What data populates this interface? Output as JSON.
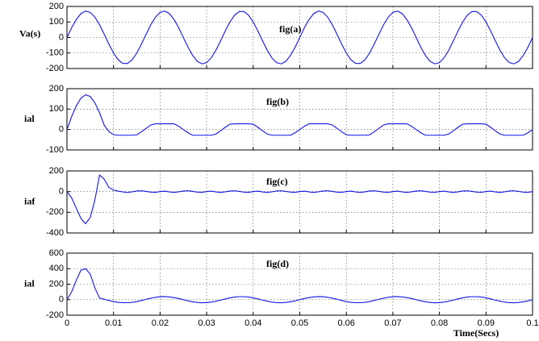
{
  "chart_data": [
    {
      "type": "line",
      "ylabel": "Va(s)",
      "annotation": "fig(a)",
      "color": "#1414e6",
      "x": [
        0,
        0.001,
        0.002,
        0.003,
        0.004,
        0.005,
        0.006,
        0.007,
        0.008,
        0.009,
        0.01,
        0.011,
        0.012,
        0.013,
        0.014,
        0.015,
        0.016,
        0.017,
        0.018,
        0.019,
        0.02,
        0.021,
        0.022,
        0.023,
        0.024,
        0.025,
        0.026,
        0.027,
        0.028,
        0.029,
        0.03,
        0.031,
        0.032,
        0.033,
        0.034,
        0.035,
        0.036,
        0.037,
        0.038,
        0.039,
        0.04,
        0.041,
        0.042,
        0.043,
        0.044,
        0.045,
        0.046,
        0.047,
        0.048,
        0.049,
        0.05,
        0.051,
        0.052,
        0.053,
        0.054,
        0.055,
        0.056,
        0.057,
        0.058,
        0.059,
        0.06,
        0.061,
        0.062,
        0.063,
        0.064,
        0.065,
        0.066,
        0.067,
        0.068,
        0.069,
        0.07,
        0.071,
        0.072,
        0.073,
        0.074,
        0.075,
        0.076,
        0.077,
        0.078,
        0.079,
        0.08,
        0.081,
        0.082,
        0.083,
        0.084,
        0.085,
        0.086,
        0.087,
        0.088,
        0.089,
        0.09,
        0.091,
        0.092,
        0.093,
        0.094,
        0.095,
        0.096,
        0.097,
        0.098,
        0.099,
        0.1
      ],
      "values": [
        0,
        63,
        116,
        154,
        170,
        162,
        131,
        82,
        21,
        -42,
        -100,
        -144,
        -167,
        -167,
        -144,
        -100,
        -42,
        21,
        82,
        131,
        162,
        170,
        154,
        116,
        63,
        0,
        -63,
        -116,
        -154,
        -170,
        -162,
        -131,
        -82,
        -21,
        42,
        100,
        144,
        167,
        167,
        144,
        100,
        42,
        -21,
        -82,
        -131,
        -162,
        -170,
        -154,
        -116,
        -63,
        0,
        63,
        116,
        154,
        170,
        162,
        131,
        82,
        21,
        -42,
        -100,
        -144,
        -167,
        -167,
        -144,
        -100,
        -42,
        21,
        82,
        131,
        162,
        170,
        154,
        116,
        63,
        0,
        -63,
        -116,
        -154,
        -170,
        -162,
        -131,
        -82,
        -21,
        42,
        100,
        144,
        167,
        167,
        144,
        100,
        42,
        -21,
        -82,
        -131,
        -162,
        -170,
        -154,
        -116,
        -63,
        0
      ],
      "xlim": [
        0,
        0.1
      ],
      "xticks": [
        0,
        0.01,
        0.02,
        0.03,
        0.04,
        0.05,
        0.06,
        0.07,
        0.08,
        0.09,
        0.1
      ],
      "ylim": [
        -200,
        200
      ],
      "yticks": [
        -200,
        -100,
        0,
        100,
        200
      ],
      "grid": true
    },
    {
      "type": "line",
      "ylabel": "ial",
      "annotation": "fig(b)",
      "color": "#1414e6",
      "x": [
        0,
        0.001,
        0.002,
        0.003,
        0.004,
        0.005,
        0.006,
        0.007,
        0.008,
        0.009,
        0.01,
        0.011,
        0.012,
        0.013,
        0.014,
        0.015,
        0.016,
        0.017,
        0.018,
        0.019,
        0.02,
        0.021,
        0.022,
        0.023,
        0.024,
        0.025,
        0.026,
        0.027,
        0.028,
        0.029,
        0.03,
        0.031,
        0.032,
        0.033,
        0.034,
        0.035,
        0.036,
        0.037,
        0.038,
        0.039,
        0.04,
        0.041,
        0.042,
        0.043,
        0.044,
        0.045,
        0.046,
        0.047,
        0.048,
        0.049,
        0.05,
        0.051,
        0.052,
        0.053,
        0.054,
        0.055,
        0.056,
        0.057,
        0.058,
        0.059,
        0.06,
        0.061,
        0.062,
        0.063,
        0.064,
        0.065,
        0.066,
        0.067,
        0.068,
        0.069,
        0.07,
        0.071,
        0.072,
        0.073,
        0.074,
        0.075,
        0.076,
        0.077,
        0.078,
        0.079,
        0.08,
        0.081,
        0.082,
        0.083,
        0.084,
        0.085,
        0.086,
        0.087,
        0.088,
        0.089,
        0.09,
        0.091,
        0.092,
        0.093,
        0.094,
        0.095,
        0.096,
        0.097,
        0.098,
        0.099,
        0.1
      ],
      "values": [
        0,
        63,
        116,
        154,
        170,
        162,
        131,
        82,
        21,
        -10,
        -25,
        -28,
        -28,
        -28,
        -28,
        -26,
        -11,
        6,
        22,
        28,
        28,
        28,
        28,
        28,
        16,
        0,
        -16,
        -28,
        -28,
        -28,
        -28,
        -28,
        -22,
        -6,
        11,
        26,
        28,
        28,
        28,
        28,
        26,
        11,
        -6,
        -22,
        -28,
        -28,
        -28,
        -28,
        -28,
        -16,
        0,
        16,
        28,
        28,
        28,
        28,
        28,
        22,
        6,
        -11,
        -26,
        -28,
        -28,
        -28,
        -28,
        -26,
        -11,
        6,
        22,
        28,
        28,
        28,
        28,
        28,
        16,
        0,
        -16,
        -28,
        -28,
        -28,
        -28,
        -28,
        -22,
        -6,
        11,
        26,
        28,
        28,
        28,
        28,
        26,
        11,
        -6,
        -22,
        -28,
        -28,
        -28,
        -28,
        -28,
        -16,
        0
      ],
      "xlim": [
        0,
        0.1
      ],
      "xticks": [
        0,
        0.01,
        0.02,
        0.03,
        0.04,
        0.05,
        0.06,
        0.07,
        0.08,
        0.09,
        0.1
      ],
      "ylim": [
        -100,
        200
      ],
      "yticks": [
        -100,
        0,
        100,
        200
      ],
      "grid": true
    },
    {
      "type": "line",
      "ylabel": "iaf",
      "annotation": "fig(c)",
      "color": "#1414e6",
      "x": [
        0,
        0.001,
        0.002,
        0.003,
        0.004,
        0.005,
        0.006,
        0.007,
        0.008,
        0.009,
        0.01,
        0.011,
        0.012,
        0.013,
        0.014,
        0.015,
        0.016,
        0.017,
        0.018,
        0.019,
        0.02,
        0.021,
        0.022,
        0.023,
        0.024,
        0.025,
        0.026,
        0.027,
        0.028,
        0.029,
        0.03,
        0.031,
        0.032,
        0.033,
        0.034,
        0.035,
        0.036,
        0.037,
        0.038,
        0.039,
        0.04,
        0.041,
        0.042,
        0.043,
        0.044,
        0.045,
        0.046,
        0.047,
        0.048,
        0.049,
        0.05,
        0.051,
        0.052,
        0.053,
        0.054,
        0.055,
        0.056,
        0.057,
        0.058,
        0.059,
        0.06,
        0.061,
        0.062,
        0.063,
        0.064,
        0.065,
        0.066,
        0.067,
        0.068,
        0.069,
        0.07,
        0.071,
        0.072,
        0.073,
        0.074,
        0.075,
        0.076,
        0.077,
        0.078,
        0.079,
        0.08,
        0.081,
        0.082,
        0.083,
        0.084,
        0.085,
        0.086,
        0.087,
        0.088,
        0.089,
        0.09,
        0.091,
        0.092,
        0.093,
        0.094,
        0.095,
        0.096,
        0.097,
        0.098,
        0.099,
        0.1
      ],
      "values": [
        0,
        -60,
        -160,
        -260,
        -310,
        -250,
        -80,
        160,
        120,
        40,
        15,
        5,
        -3,
        -8,
        -2,
        6,
        8,
        2,
        -5,
        -7,
        0,
        5,
        -3,
        -8,
        -2,
        6,
        8,
        2,
        -5,
        -7,
        0,
        5,
        -3,
        -8,
        -2,
        6,
        8,
        2,
        -5,
        -7,
        0,
        5,
        -3,
        -8,
        -2,
        6,
        8,
        2,
        -5,
        -7,
        0,
        5,
        -3,
        -8,
        -2,
        6,
        8,
        2,
        -5,
        -7,
        0,
        5,
        -3,
        -8,
        -2,
        6,
        8,
        2,
        -5,
        -7,
        0,
        5,
        -3,
        -8,
        -2,
        6,
        8,
        2,
        -5,
        -7,
        0,
        5,
        -3,
        -8,
        -2,
        6,
        8,
        2,
        -5,
        -7,
        0,
        5,
        -3,
        -8,
        -2,
        6,
        8,
        2,
        -5,
        -7,
        0
      ],
      "xlim": [
        0,
        0.1
      ],
      "xticks": [
        0,
        0.01,
        0.02,
        0.03,
        0.04,
        0.05,
        0.06,
        0.07,
        0.08,
        0.09,
        0.1
      ],
      "ylim": [
        -400,
        200
      ],
      "yticks": [
        -400,
        -200,
        0,
        200
      ],
      "grid": true
    },
    {
      "type": "line",
      "ylabel": "ial",
      "annotation": "fig(d)",
      "xlabel": "Time(Secs)",
      "color": "#1414e6",
      "x": [
        0,
        0.001,
        0.002,
        0.003,
        0.004,
        0.005,
        0.006,
        0.007,
        0.008,
        0.009,
        0.01,
        0.011,
        0.012,
        0.013,
        0.014,
        0.015,
        0.016,
        0.017,
        0.018,
        0.019,
        0.02,
        0.021,
        0.022,
        0.023,
        0.024,
        0.025,
        0.026,
        0.027,
        0.028,
        0.029,
        0.03,
        0.031,
        0.032,
        0.033,
        0.034,
        0.035,
        0.036,
        0.037,
        0.038,
        0.039,
        0.04,
        0.041,
        0.042,
        0.043,
        0.044,
        0.045,
        0.046,
        0.047,
        0.048,
        0.049,
        0.05,
        0.051,
        0.052,
        0.053,
        0.054,
        0.055,
        0.056,
        0.057,
        0.058,
        0.059,
        0.06,
        0.061,
        0.062,
        0.063,
        0.064,
        0.065,
        0.066,
        0.067,
        0.068,
        0.069,
        0.07,
        0.071,
        0.072,
        0.073,
        0.074,
        0.075,
        0.076,
        0.077,
        0.078,
        0.079,
        0.08,
        0.081,
        0.082,
        0.083,
        0.084,
        0.085,
        0.086,
        0.087,
        0.088,
        0.089,
        0.09,
        0.091,
        0.092,
        0.093,
        0.094,
        0.095,
        0.096,
        0.097,
        0.098,
        0.099,
        0.1
      ],
      "values": [
        0,
        100,
        250,
        380,
        400,
        330,
        150,
        20,
        5,
        -10,
        -24,
        -34,
        -39,
        -39,
        -34,
        -24,
        -10,
        5,
        19,
        31,
        38,
        40,
        36,
        27,
        15,
        0,
        -15,
        -27,
        -36,
        -40,
        -38,
        -31,
        -19,
        -5,
        10,
        24,
        34,
        39,
        39,
        34,
        24,
        10,
        -5,
        -19,
        -31,
        -38,
        -40,
        -36,
        -27,
        -15,
        0,
        15,
        27,
        36,
        40,
        38,
        31,
        19,
        5,
        -10,
        -24,
        -34,
        -39,
        -39,
        -34,
        -24,
        -10,
        5,
        19,
        31,
        38,
        40,
        36,
        27,
        15,
        0,
        -15,
        -27,
        -36,
        -40,
        -38,
        -31,
        -19,
        -5,
        10,
        24,
        34,
        39,
        39,
        34,
        24,
        10,
        -5,
        -19,
        -31,
        -38,
        -40,
        -36,
        -27,
        -15,
        0
      ],
      "xlim": [
        0,
        0.1
      ],
      "xticks": [
        0,
        0.01,
        0.02,
        0.03,
        0.04,
        0.05,
        0.06,
        0.07,
        0.08,
        0.09,
        0.1
      ],
      "ylim": [
        -200,
        600
      ],
      "yticks": [
        -200,
        0,
        200,
        400,
        600
      ],
      "grid": true
    }
  ]
}
